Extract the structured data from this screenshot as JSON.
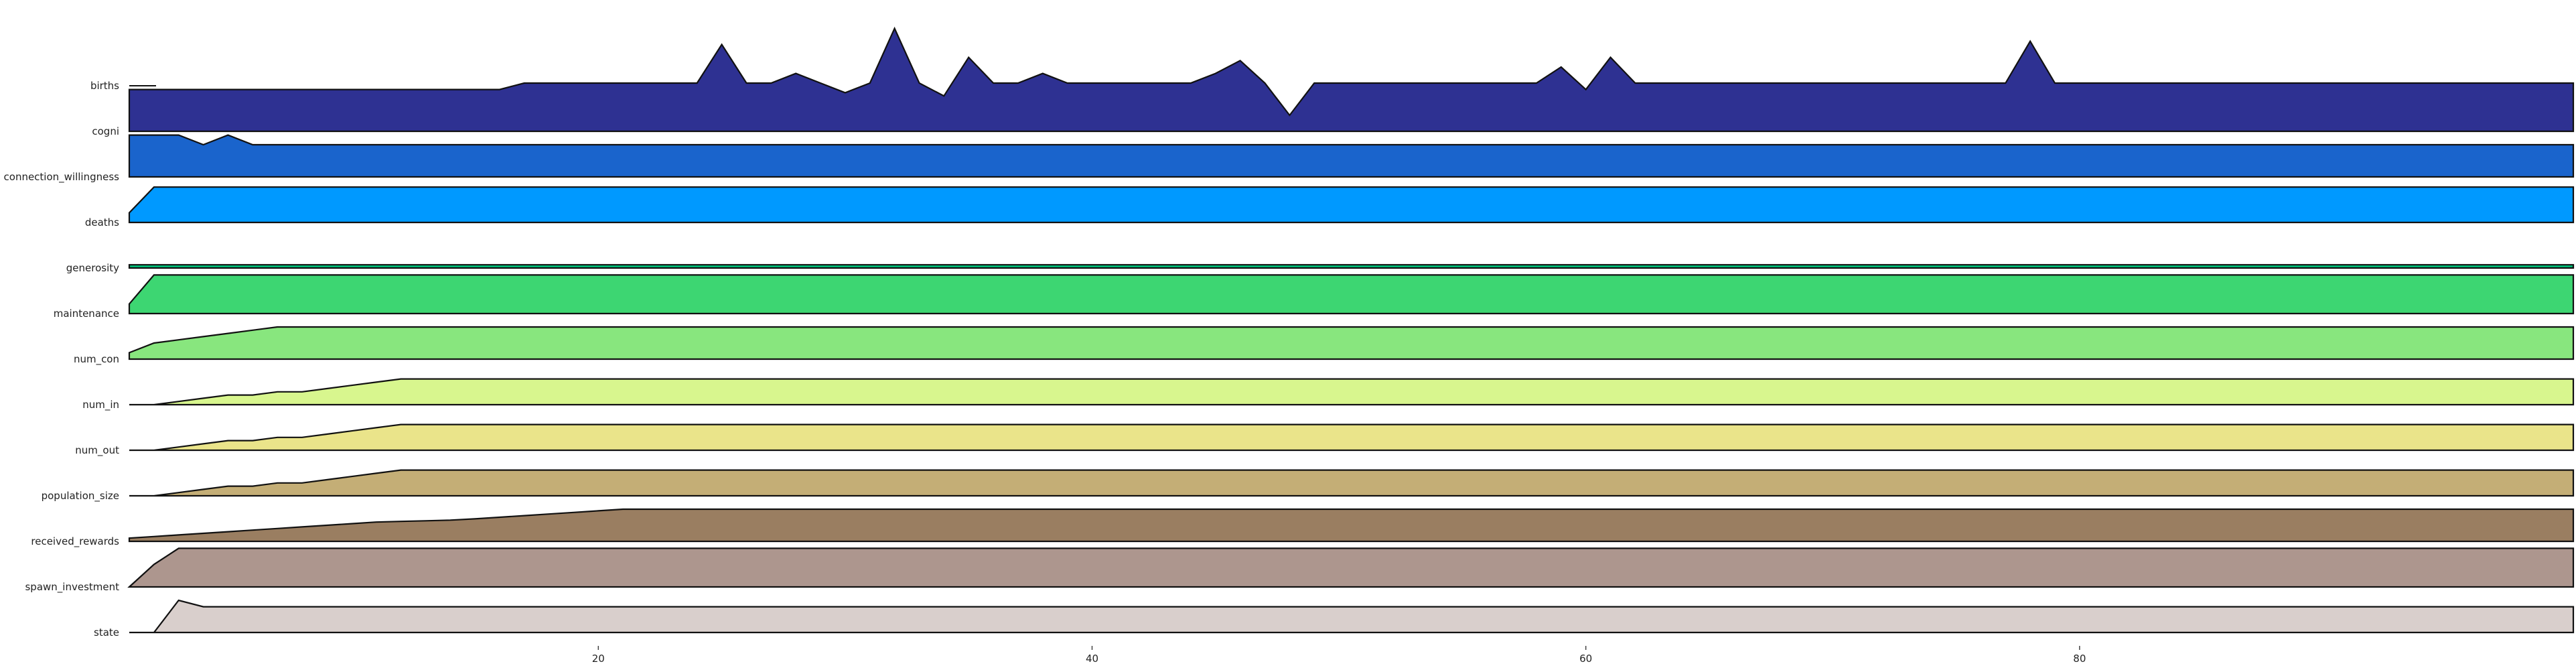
{
  "chart_data": {
    "type": "area",
    "title": "",
    "xlabel": "",
    "ylabel": "",
    "xlim": [
      1,
      100
    ],
    "x_ticks": [
      20,
      40,
      60,
      80
    ],
    "grid": false,
    "legend": "none",
    "series": [
      {
        "name": "births",
        "color": "#2e3192",
        "values": [
          1.3,
          1.3,
          1.3,
          1.3,
          1.3,
          1.3,
          1.3,
          1.3,
          1.3,
          1.3,
          1.3,
          1.3,
          1.3,
          1.3,
          1.3,
          1.3,
          1.5,
          1.5,
          1.5,
          1.5,
          1.5,
          1.5,
          1.5,
          1.5,
          2.7,
          1.5,
          1.5,
          1.8,
          1.5,
          1.2,
          1.5,
          3.2,
          1.5,
          1.1,
          2.3,
          1.5,
          1.5,
          1.8,
          1.5,
          1.5,
          1.5,
          1.5,
          1.5,
          1.5,
          1.8,
          2.2,
          1.5,
          0.5,
          1.5,
          1.5,
          1.5,
          1.5,
          1.5,
          1.5,
          1.5,
          1.5,
          1.5,
          1.5,
          2.0,
          1.3,
          2.3,
          1.5,
          1.5,
          1.5,
          1.5,
          1.5,
          1.5,
          1.5,
          1.5,
          1.5,
          1.5,
          1.5,
          1.5,
          1.5,
          1.5,
          1.5,
          1.5,
          2.8,
          1.5,
          1.5,
          1.5,
          1.5,
          1.5,
          1.5,
          1.5,
          1.5,
          1.5,
          1.5,
          1.5,
          1.5,
          1.5,
          1.5,
          1.5,
          1.5,
          1.5,
          1.5,
          1.5,
          1.5,
          1.5,
          1.5
        ]
      },
      {
        "name": "cogni",
        "color": "#1a64cc",
        "values": [
          1.3,
          1.3,
          1.3,
          1.0,
          1.3,
          1.0,
          1.0,
          1.0,
          1.0,
          1.0,
          1.0,
          1.0,
          1.0,
          1.0,
          1.0,
          1.0,
          1.0,
          1.0,
          1.0,
          1.0,
          1.0,
          1.0,
          1.0,
          1.0,
          1.0,
          1.0,
          1.0,
          1.0,
          1.0,
          1.0,
          1.0,
          1.0,
          1.0,
          1.0,
          1.0,
          1.0,
          1.0,
          1.0,
          1.0,
          1.0,
          1.0,
          1.0,
          1.0,
          1.0,
          1.0,
          1.0,
          1.0,
          1.0,
          1.0,
          1.0,
          1.0,
          1.0,
          1.0,
          1.0,
          1.0,
          1.0,
          1.0,
          1.0,
          1.0,
          1.0,
          1.0,
          1.0,
          1.0,
          1.0,
          1.0,
          1.0,
          1.0,
          1.0,
          1.0,
          1.0,
          1.0,
          1.0,
          1.0,
          1.0,
          1.0,
          1.0,
          1.0,
          1.0,
          1.0,
          1.0,
          1.0,
          1.0,
          1.0,
          1.0,
          1.0,
          1.0,
          1.0,
          1.0,
          1.0,
          1.0,
          1.0,
          1.0,
          1.0,
          1.0,
          1.0,
          1.0,
          1.0,
          1.0,
          1.0,
          1.0
        ]
      },
      {
        "name": "connection_willingness",
        "color": "#0099ff",
        "values": [
          0.3,
          1.1,
          1.1,
          1.1,
          1.1,
          1.1,
          1.1,
          1.1,
          1.1,
          1.1,
          1.1,
          1.1,
          1.1,
          1.1,
          1.1,
          1.1,
          1.1,
          1.1,
          1.1,
          1.1,
          1.1,
          1.1,
          1.1,
          1.1,
          1.1,
          1.1,
          1.1,
          1.1,
          1.1,
          1.1,
          1.1,
          1.1,
          1.1,
          1.1,
          1.1,
          1.1,
          1.1,
          1.1,
          1.1,
          1.1,
          1.1,
          1.1,
          1.1,
          1.1,
          1.1,
          1.1,
          1.1,
          1.1,
          1.1,
          1.1,
          1.1,
          1.1,
          1.1,
          1.1,
          1.1,
          1.1,
          1.1,
          1.1,
          1.1,
          1.1,
          1.1,
          1.1,
          1.1,
          1.1,
          1.1,
          1.1,
          1.1,
          1.1,
          1.1,
          1.1,
          1.1,
          1.1,
          1.1,
          1.1,
          1.1,
          1.1,
          1.1,
          1.1,
          1.1,
          1.1,
          1.1,
          1.1,
          1.1,
          1.1,
          1.1,
          1.1,
          1.1,
          1.1,
          1.1,
          1.1,
          1.1,
          1.1,
          1.1,
          1.1,
          1.1,
          1.1,
          1.1,
          1.1,
          1.1,
          1.1
        ]
      },
      {
        "name": "deaths",
        "color": "#00c27a",
        "values": [
          0.1,
          0.1,
          0.1,
          0.1,
          0.1,
          0.1,
          0.1,
          0.1,
          0.1,
          0.1,
          0.1,
          0.1,
          0.1,
          0.1,
          0.1,
          0.1,
          0.1,
          0.1,
          0.1,
          0.1,
          0.1,
          0.1,
          0.1,
          0.1,
          0.1,
          0.1,
          0.1,
          0.1,
          0.1,
          0.1,
          0.1,
          0.1,
          0.1,
          0.1,
          0.1,
          0.1,
          0.1,
          0.1,
          0.1,
          0.1,
          0.1,
          0.1,
          0.1,
          0.1,
          0.1,
          0.1,
          0.1,
          0.1,
          0.1,
          0.1,
          0.1,
          0.1,
          0.1,
          0.1,
          0.1,
          0.1,
          0.1,
          0.1,
          0.1,
          0.1,
          0.1,
          0.1,
          0.1,
          0.1,
          0.1,
          0.1,
          0.1,
          0.1,
          0.1,
          0.1,
          0.1,
          0.1,
          0.1,
          0.1,
          0.1,
          0.1,
          0.1,
          0.1,
          0.1,
          0.1,
          0.1,
          0.1,
          0.1,
          0.1,
          0.1,
          0.1,
          0.1,
          0.1,
          0.1,
          0.1,
          0.1,
          0.1,
          0.1,
          0.1,
          0.1,
          0.1,
          0.1,
          0.1,
          0.1,
          0.1
        ]
      },
      {
        "name": "generosity",
        "color": "#3dd672",
        "values": [
          0.3,
          1.2,
          1.2,
          1.2,
          1.2,
          1.2,
          1.2,
          1.2,
          1.2,
          1.2,
          1.2,
          1.2,
          1.2,
          1.2,
          1.2,
          1.2,
          1.2,
          1.2,
          1.2,
          1.2,
          1.2,
          1.2,
          1.2,
          1.2,
          1.2,
          1.2,
          1.2,
          1.2,
          1.2,
          1.2,
          1.2,
          1.2,
          1.2,
          1.2,
          1.2,
          1.2,
          1.2,
          1.2,
          1.2,
          1.2,
          1.2,
          1.2,
          1.2,
          1.2,
          1.2,
          1.2,
          1.2,
          1.2,
          1.2,
          1.2,
          1.2,
          1.2,
          1.2,
          1.2,
          1.2,
          1.2,
          1.2,
          1.2,
          1.2,
          1.2,
          1.2,
          1.2,
          1.2,
          1.2,
          1.2,
          1.2,
          1.2,
          1.2,
          1.2,
          1.2,
          1.2,
          1.2,
          1.2,
          1.2,
          1.2,
          1.2,
          1.2,
          1.2,
          1.2,
          1.2,
          1.2,
          1.2,
          1.2,
          1.2,
          1.2,
          1.2,
          1.2,
          1.2,
          1.2,
          1.2,
          1.2,
          1.2,
          1.2,
          1.2,
          1.2,
          1.2,
          1.2,
          1.2,
          1.2,
          1.2
        ]
      },
      {
        "name": "maintenance",
        "color": "#88e67e",
        "values": [
          0.2,
          0.5,
          0.6,
          0.7,
          0.8,
          0.9,
          1.0,
          1.0,
          1.0,
          1.0,
          1.0,
          1.0,
          1.0,
          1.0,
          1.0,
          1.0,
          1.0,
          1.0,
          1.0,
          1.0,
          1.0,
          1.0,
          1.0,
          1.0,
          1.0,
          1.0,
          1.0,
          1.0,
          1.0,
          1.0,
          1.0,
          1.0,
          1.0,
          1.0,
          1.0,
          1.0,
          1.0,
          1.0,
          1.0,
          1.0,
          1.0,
          1.0,
          1.0,
          1.0,
          1.0,
          1.0,
          1.0,
          1.0,
          1.0,
          1.0,
          1.0,
          1.0,
          1.0,
          1.0,
          1.0,
          1.0,
          1.0,
          1.0,
          1.0,
          1.0,
          1.0,
          1.0,
          1.0,
          1.0,
          1.0,
          1.0,
          1.0,
          1.0,
          1.0,
          1.0,
          1.0,
          1.0,
          1.0,
          1.0,
          1.0,
          1.0,
          1.0,
          1.0,
          1.0,
          1.0,
          1.0,
          1.0,
          1.0,
          1.0,
          1.0,
          1.0,
          1.0,
          1.0,
          1.0,
          1.0,
          1.0,
          1.0,
          1.0,
          1.0,
          1.0,
          1.0,
          1.0,
          1.0,
          1.0,
          1.0
        ]
      },
      {
        "name": "num_con",
        "color": "#d8f68e",
        "values": [
          0.0,
          0.0,
          0.1,
          0.2,
          0.3,
          0.3,
          0.4,
          0.4,
          0.5,
          0.6,
          0.7,
          0.8,
          0.8,
          0.8,
          0.8,
          0.8,
          0.8,
          0.8,
          0.8,
          0.8,
          0.8,
          0.8,
          0.8,
          0.8,
          0.8,
          0.8,
          0.8,
          0.8,
          0.8,
          0.8,
          0.8,
          0.8,
          0.8,
          0.8,
          0.8,
          0.8,
          0.8,
          0.8,
          0.8,
          0.8,
          0.8,
          0.8,
          0.8,
          0.8,
          0.8,
          0.8,
          0.8,
          0.8,
          0.8,
          0.8,
          0.8,
          0.8,
          0.8,
          0.8,
          0.8,
          0.8,
          0.8,
          0.8,
          0.8,
          0.8,
          0.8,
          0.8,
          0.8,
          0.8,
          0.8,
          0.8,
          0.8,
          0.8,
          0.8,
          0.8,
          0.8,
          0.8,
          0.8,
          0.8,
          0.8,
          0.8,
          0.8,
          0.8,
          0.8,
          0.8,
          0.8,
          0.8,
          0.8,
          0.8,
          0.8,
          0.8,
          0.8,
          0.8,
          0.8,
          0.8,
          0.8,
          0.8,
          0.8,
          0.8,
          0.8,
          0.8,
          0.8,
          0.8,
          0.8,
          0.8
        ]
      },
      {
        "name": "num_in",
        "color": "#eae48a",
        "values": [
          0.0,
          0.0,
          0.1,
          0.2,
          0.3,
          0.3,
          0.4,
          0.4,
          0.5,
          0.6,
          0.7,
          0.8,
          0.8,
          0.8,
          0.8,
          0.8,
          0.8,
          0.8,
          0.8,
          0.8,
          0.8,
          0.8,
          0.8,
          0.8,
          0.8,
          0.8,
          0.8,
          0.8,
          0.8,
          0.8,
          0.8,
          0.8,
          0.8,
          0.8,
          0.8,
          0.8,
          0.8,
          0.8,
          0.8,
          0.8,
          0.8,
          0.8,
          0.8,
          0.8,
          0.8,
          0.8,
          0.8,
          0.8,
          0.8,
          0.8,
          0.8,
          0.8,
          0.8,
          0.8,
          0.8,
          0.8,
          0.8,
          0.8,
          0.8,
          0.8,
          0.8,
          0.8,
          0.8,
          0.8,
          0.8,
          0.8,
          0.8,
          0.8,
          0.8,
          0.8,
          0.8,
          0.8,
          0.8,
          0.8,
          0.8,
          0.8,
          0.8,
          0.8,
          0.8,
          0.8,
          0.8,
          0.8,
          0.8,
          0.8,
          0.8,
          0.8,
          0.8,
          0.8,
          0.8,
          0.8,
          0.8,
          0.8,
          0.8,
          0.8,
          0.8,
          0.8,
          0.8,
          0.8,
          0.8,
          0.8
        ]
      },
      {
        "name": "num_out",
        "color": "#c4ae76",
        "values": [
          0.0,
          0.0,
          0.1,
          0.2,
          0.3,
          0.3,
          0.4,
          0.4,
          0.5,
          0.6,
          0.7,
          0.8,
          0.8,
          0.8,
          0.8,
          0.8,
          0.8,
          0.8,
          0.8,
          0.8,
          0.8,
          0.8,
          0.8,
          0.8,
          0.8,
          0.8,
          0.8,
          0.8,
          0.8,
          0.8,
          0.8,
          0.8,
          0.8,
          0.8,
          0.8,
          0.8,
          0.8,
          0.8,
          0.8,
          0.8,
          0.8,
          0.8,
          0.8,
          0.8,
          0.8,
          0.8,
          0.8,
          0.8,
          0.8,
          0.8,
          0.8,
          0.8,
          0.8,
          0.8,
          0.8,
          0.8,
          0.8,
          0.8,
          0.8,
          0.8,
          0.8,
          0.8,
          0.8,
          0.8,
          0.8,
          0.8,
          0.8,
          0.8,
          0.8,
          0.8,
          0.8,
          0.8,
          0.8,
          0.8,
          0.8,
          0.8,
          0.8,
          0.8,
          0.8,
          0.8,
          0.8,
          0.8,
          0.8,
          0.8,
          0.8,
          0.8,
          0.8,
          0.8,
          0.8,
          0.8,
          0.8,
          0.8,
          0.8,
          0.8,
          0.8,
          0.8,
          0.8,
          0.8,
          0.8,
          0.8
        ]
      },
      {
        "name": "population_size",
        "color": "#9a7e61",
        "values": [
          0.1,
          0.15,
          0.2,
          0.25,
          0.3,
          0.35,
          0.4,
          0.45,
          0.5,
          0.55,
          0.6,
          0.62,
          0.64,
          0.66,
          0.7,
          0.75,
          0.8,
          0.85,
          0.9,
          0.95,
          1.0,
          1.0,
          1.0,
          1.0,
          1.0,
          1.0,
          1.0,
          1.0,
          1.0,
          1.0,
          1.0,
          1.0,
          1.0,
          1.0,
          1.0,
          1.0,
          1.0,
          1.0,
          1.0,
          1.0,
          1.0,
          1.0,
          1.0,
          1.0,
          1.0,
          1.0,
          1.0,
          1.0,
          1.0,
          1.0,
          1.0,
          1.0,
          1.0,
          1.0,
          1.0,
          1.0,
          1.0,
          1.0,
          1.0,
          1.0,
          1.0,
          1.0,
          1.0,
          1.0,
          1.0,
          1.0,
          1.0,
          1.0,
          1.0,
          1.0,
          1.0,
          1.0,
          1.0,
          1.0,
          1.0,
          1.0,
          1.0,
          1.0,
          1.0,
          1.0,
          1.0,
          1.0,
          1.0,
          1.0,
          1.0,
          1.0,
          1.0,
          1.0,
          1.0,
          1.0,
          1.0,
          1.0,
          1.0,
          1.0,
          1.0,
          1.0,
          1.0,
          1.0,
          1.0,
          1.0
        ]
      },
      {
        "name": "received_rewards",
        "color": "#ad968e",
        "values": [
          0.0,
          0.7,
          1.2,
          1.2,
          1.2,
          1.2,
          1.2,
          1.2,
          1.2,
          1.2,
          1.2,
          1.2,
          1.2,
          1.2,
          1.2,
          1.2,
          1.2,
          1.2,
          1.2,
          1.2,
          1.2,
          1.2,
          1.2,
          1.2,
          1.2,
          1.2,
          1.2,
          1.2,
          1.2,
          1.2,
          1.2,
          1.2,
          1.2,
          1.2,
          1.2,
          1.2,
          1.2,
          1.2,
          1.2,
          1.2,
          1.2,
          1.2,
          1.2,
          1.2,
          1.2,
          1.2,
          1.2,
          1.2,
          1.2,
          1.2,
          1.2,
          1.2,
          1.2,
          1.2,
          1.2,
          1.2,
          1.2,
          1.2,
          1.2,
          1.2,
          1.2,
          1.2,
          1.2,
          1.2,
          1.2,
          1.2,
          1.2,
          1.2,
          1.2,
          1.2,
          1.2,
          1.2,
          1.2,
          1.2,
          1.2,
          1.2,
          1.2,
          1.2,
          1.2,
          1.2,
          1.2,
          1.2,
          1.2,
          1.2,
          1.2,
          1.2,
          1.2,
          1.2,
          1.2,
          1.2,
          1.2,
          1.2,
          1.2,
          1.2,
          1.2,
          1.2,
          1.2,
          1.2,
          1.2,
          1.2
        ]
      },
      {
        "name": "spawn_investment",
        "color": "#d9cfcc",
        "values": [
          0.0,
          0.0,
          1.0,
          0.8,
          0.8,
          0.8,
          0.8,
          0.8,
          0.8,
          0.8,
          0.8,
          0.8,
          0.8,
          0.8,
          0.8,
          0.8,
          0.8,
          0.8,
          0.8,
          0.8,
          0.8,
          0.8,
          0.8,
          0.8,
          0.8,
          0.8,
          0.8,
          0.8,
          0.8,
          0.8,
          0.8,
          0.8,
          0.8,
          0.8,
          0.8,
          0.8,
          0.8,
          0.8,
          0.8,
          0.8,
          0.8,
          0.8,
          0.8,
          0.8,
          0.8,
          0.8,
          0.8,
          0.8,
          0.8,
          0.8,
          0.8,
          0.8,
          0.8,
          0.8,
          0.8,
          0.8,
          0.8,
          0.8,
          0.8,
          0.8,
          0.8,
          0.8,
          0.8,
          0.8,
          0.8,
          0.8,
          0.8,
          0.8,
          0.8,
          0.8,
          0.8,
          0.8,
          0.8,
          0.8,
          0.8,
          0.8,
          0.8,
          0.8,
          0.8,
          0.8,
          0.8,
          0.8,
          0.8,
          0.8,
          0.8,
          0.8,
          0.8,
          0.8,
          0.8,
          0.8,
          0.8,
          0.8,
          0.8,
          0.8,
          0.8,
          0.8,
          0.8,
          0.8,
          0.8,
          0.8
        ]
      }
    ],
    "row_labels": [
      "births",
      "cogni",
      "connection_willingness",
      "deaths",
      "generosity",
      "maintenance",
      "num_con",
      "num_in",
      "num_out",
      "population_size",
      "received_rewards",
      "spawn_investment",
      "state"
    ]
  }
}
